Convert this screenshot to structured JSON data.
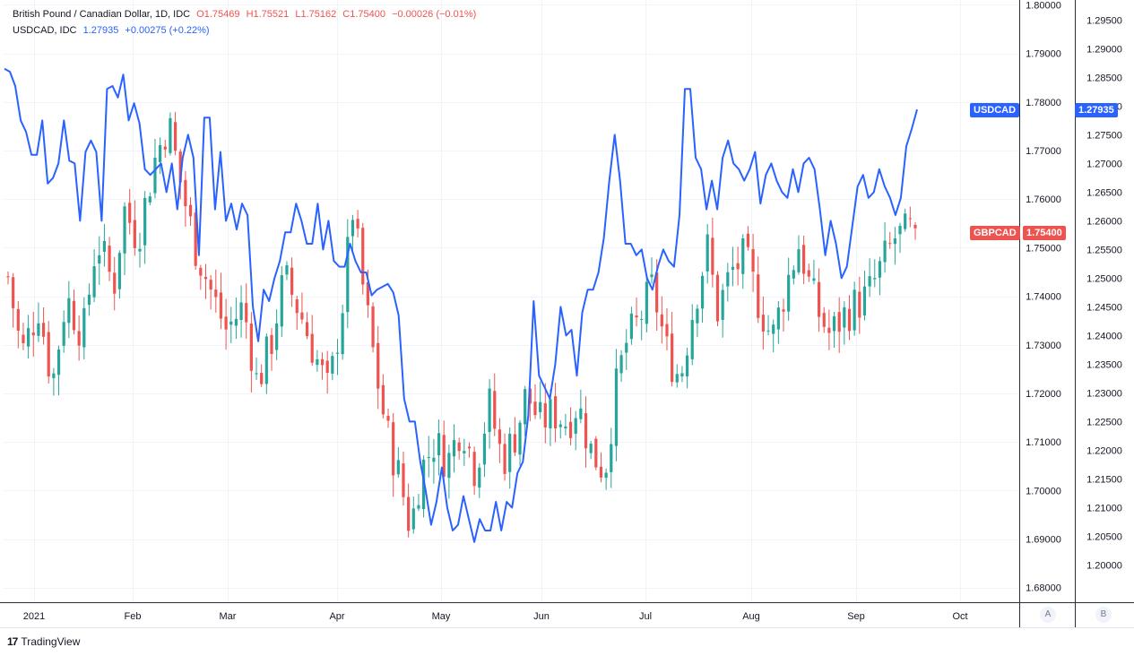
{
  "legend": {
    "main_title": "British Pound / Canadian Dollar, 1D, IDC",
    "open": "O1.75469",
    "high": "H1.75521",
    "low": "L1.75162",
    "close": "C1.75400",
    "change": "−0.00026 (−0.01%)",
    "second_title": "USDCAD, IDC",
    "second_value": "1.27935",
    "second_change": "+0.00275 (+0.22%)"
  },
  "tags": {
    "usdcad_name": "USDCAD",
    "usdcad_value": "1.27935",
    "gbpcad_name": "GBPCAD",
    "gbpcad_value": "1.75400"
  },
  "scale_buttons": {
    "a": "A",
    "b": "B"
  },
  "brand": {
    "name": "TradingView",
    "logo": "17"
  },
  "colors": {
    "up": "#26a69a",
    "down": "#ef5350",
    "line": "#2962ff",
    "grid": "#f0f3fa",
    "text": "#131722"
  },
  "chart_data": {
    "type": "candlestick+line",
    "x_labels": [
      "2021",
      "Feb",
      "Mar",
      "Apr",
      "May",
      "Jun",
      "Jul",
      "Aug",
      "Sep",
      "Oct"
    ],
    "left_axis": {
      "series": "GBPCAD",
      "range": [
        1.677,
        1.801
      ],
      "ticks": [
        "1.80000",
        "1.79000",
        "1.78000",
        "1.77000",
        "1.76000",
        "1.75000",
        "1.74000",
        "1.73000",
        "1.72000",
        "1.71000",
        "1.70000",
        "1.69000",
        "1.68000"
      ]
    },
    "right_axis": {
      "series": "USDCAD",
      "range": [
        1.1935,
        1.2985
      ],
      "ticks": [
        "1.29500",
        "1.29000",
        "1.28500",
        "1.28000",
        "1.27500",
        "1.27000",
        "1.26500",
        "1.26000",
        "1.25500",
        "1.25000",
        "1.24500",
        "1.24000",
        "1.23500",
        "1.23000",
        "1.22500",
        "1.22000",
        "1.21500",
        "1.21000",
        "1.20500",
        "1.20000"
      ]
    },
    "gbpcad_close_anchors": [
      [
        0,
        1.744
      ],
      [
        4,
        1.728
      ],
      [
        9,
        1.738
      ],
      [
        13,
        1.722
      ],
      [
        17,
        1.74
      ],
      [
        22,
        1.732
      ],
      [
        26,
        1.752
      ],
      [
        31,
        1.742
      ],
      [
        34,
        1.758
      ],
      [
        38,
        1.752
      ],
      [
        43,
        1.768
      ],
      [
        47,
        1.776
      ],
      [
        51,
        1.762
      ],
      [
        55,
        1.75
      ],
      [
        60,
        1.74
      ],
      [
        64,
        1.733
      ],
      [
        69,
        1.738
      ],
      [
        73,
        1.722
      ],
      [
        77,
        1.73
      ],
      [
        81,
        1.744
      ],
      [
        86,
        1.736
      ],
      [
        90,
        1.728
      ],
      [
        94,
        1.72
      ],
      [
        98,
        1.738
      ],
      [
        101,
        1.758
      ],
      [
        104,
        1.742
      ],
      [
        108,
        1.724
      ],
      [
        111,
        1.712
      ],
      [
        115,
        1.702
      ],
      [
        118,
        1.692
      ],
      [
        121,
        1.704
      ],
      [
        125,
        1.71
      ],
      [
        129,
        1.706
      ],
      [
        133,
        1.714
      ],
      [
        137,
        1.704
      ],
      [
        141,
        1.718
      ],
      [
        145,
        1.706
      ],
      [
        149,
        1.712
      ],
      [
        152,
        1.72
      ],
      [
        156,
        1.714
      ],
      [
        160,
        1.716
      ],
      [
        164,
        1.714
      ],
      [
        167,
        1.718
      ],
      [
        171,
        1.708
      ],
      [
        175,
        1.704
      ],
      [
        178,
        1.72
      ],
      [
        181,
        1.73
      ],
      [
        185,
        1.735
      ],
      [
        189,
        1.742
      ],
      [
        193,
        1.729
      ],
      [
        197,
        1.723
      ],
      [
        201,
        1.738
      ],
      [
        205,
        1.75
      ],
      [
        208,
        1.737
      ],
      [
        212,
        1.745
      ],
      [
        216,
        1.748
      ],
      [
        220,
        1.739
      ],
      [
        224,
        1.731
      ],
      [
        228,
        1.742
      ],
      [
        232,
        1.751
      ],
      [
        235,
        1.742
      ],
      [
        238,
        1.736
      ],
      [
        241,
        1.732
      ],
      [
        245,
        1.736
      ],
      [
        248,
        1.738
      ],
      [
        252,
        1.74
      ],
      [
        256,
        1.746
      ],
      [
        260,
        1.752
      ],
      [
        264,
        1.753
      ],
      [
        266,
        1.754
      ]
    ],
    "usdcad_close": [
      1.2865,
      1.286,
      1.2835,
      1.2775,
      1.2755,
      1.2715,
      1.2715,
      1.2775,
      1.2665,
      1.2675,
      1.27,
      1.2775,
      1.2705,
      1.27,
      1.26,
      1.272,
      1.274,
      1.272,
      1.26,
      1.283,
      1.2835,
      1.2815,
      1.2855,
      1.2775,
      1.2805,
      1.277,
      1.269,
      1.268,
      1.269,
      1.27,
      1.265,
      1.27,
      1.262,
      1.271,
      1.275,
      1.271,
      1.254,
      1.278,
      1.278,
      1.262,
      1.272,
      1.26,
      1.263,
      1.2585,
      1.263,
      1.261,
      1.245,
      1.239,
      1.248,
      1.246,
      1.25,
      1.253,
      1.258,
      1.258,
      1.263,
      1.26,
      1.256,
      1.256,
      1.263,
      1.255,
      1.26,
      1.253,
      1.252,
      1.252,
      1.256,
      1.253,
      1.251,
      1.251,
      1.247,
      1.248,
      1.2485,
      1.249,
      1.2475,
      1.2435,
      1.229,
      1.225,
      1.225,
      1.218,
      1.213,
      1.207,
      1.211,
      1.217,
      1.21,
      1.206,
      1.207,
      1.212,
      1.208,
      1.204,
      1.208,
      1.206,
      1.206,
      1.211,
      1.206,
      1.211,
      1.21,
      1.216,
      1.218,
      1.226,
      1.246,
      1.233,
      1.231,
      1.229,
      1.235,
      1.245,
      1.24,
      1.241,
      1.233,
      1.244,
      1.248,
      1.248,
      1.251,
      1.257,
      1.267,
      1.275,
      1.267,
      1.256,
      1.256,
      1.254,
      1.255,
      1.25,
      1.248,
      1.252,
      1.255,
      1.253,
      1.252,
      1.261,
      1.283,
      1.283,
      1.271,
      1.269,
      1.262,
      1.267,
      1.262,
      1.271,
      1.274,
      1.27,
      1.269,
      1.267,
      1.269,
      1.272,
      1.263,
      1.268,
      1.27,
      1.267,
      1.265,
      1.264,
      1.269,
      1.265,
      1.27,
      1.271,
      1.269,
      1.262,
      1.254,
      1.26,
      1.256,
      1.25,
      1.252,
      1.259,
      1.266,
      1.268,
      1.264,
      1.265,
      1.269,
      1.266,
      1.264,
      1.261,
      1.264,
      1.273,
      1.276,
      1.2794
    ]
  }
}
